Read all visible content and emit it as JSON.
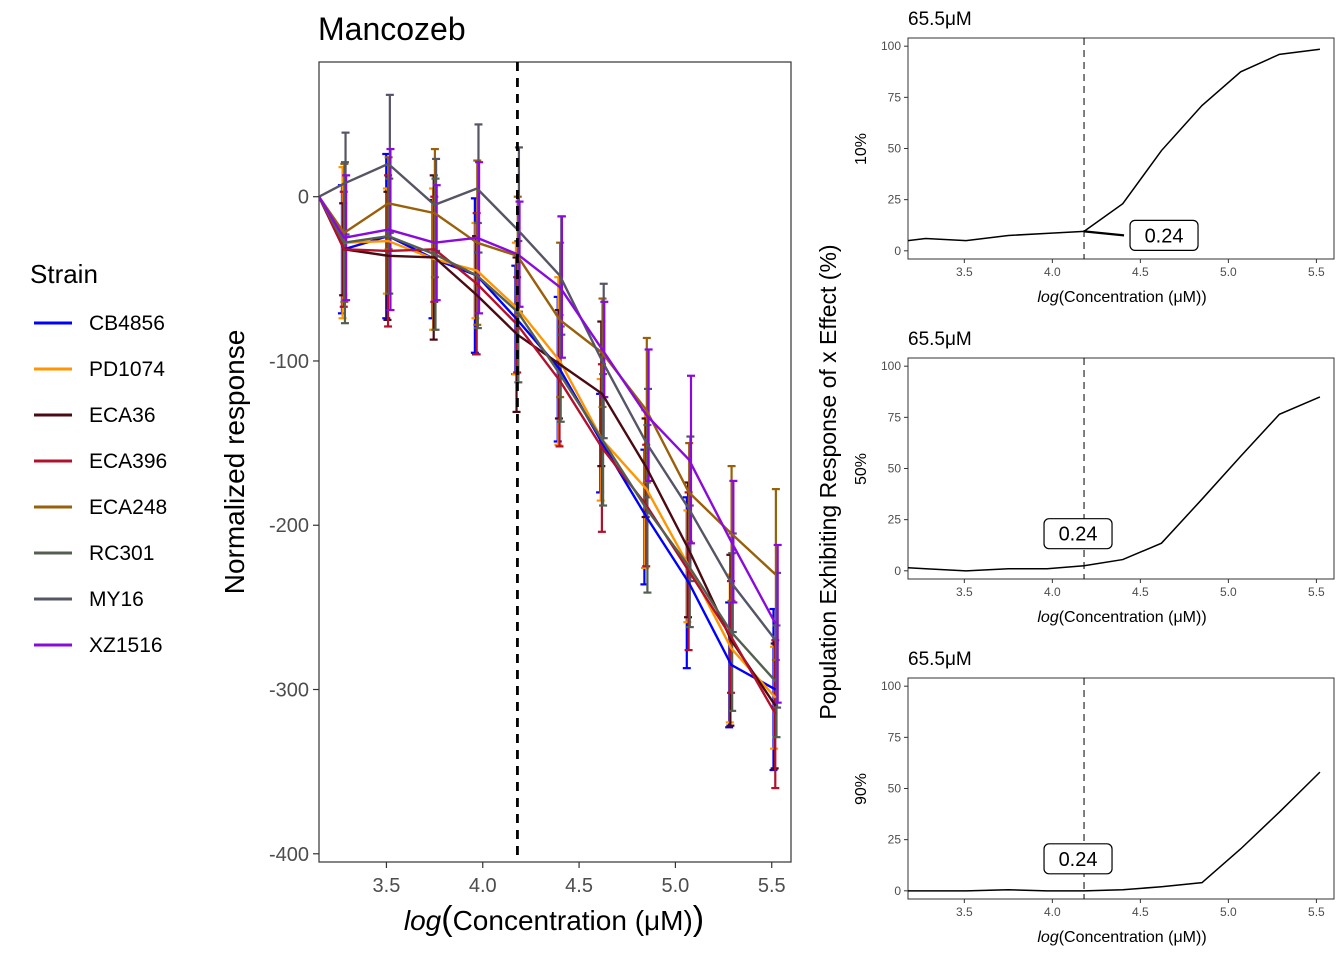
{
  "chart_data": [
    {
      "type": "line",
      "title": "Mancozeb",
      "xlabel_func": "log",
      "xlabel": "Concentration (μM)",
      "ylabel": "Normalized response",
      "xlim": [
        3.15,
        5.6
      ],
      "ylim": [
        -405,
        82
      ],
      "xticks": [
        "3.5",
        "4.0",
        "4.5",
        "5.0",
        "5.5"
      ],
      "yticks": [
        "0",
        "-100",
        "-200",
        "-300",
        "-400"
      ],
      "vline_x": 4.18,
      "error_bars": true,
      "x": [
        3.15,
        3.28,
        3.51,
        3.75,
        3.97,
        4.18,
        4.4,
        4.62,
        4.85,
        5.07,
        5.29,
        5.52
      ],
      "series": [
        {
          "name": "CB4856",
          "color": "#0000FF",
          "values": [
            0,
            -32,
            -24,
            -38,
            -48,
            -75,
            -105,
            -150,
            -195,
            -235,
            -285,
            -300
          ]
        },
        {
          "name": "PD1074",
          "color": "#FF9500",
          "values": [
            0,
            -28,
            -27,
            -38,
            -45,
            -68,
            -100,
            -148,
            -178,
            -225,
            -275,
            -305
          ]
        },
        {
          "name": "ECA36",
          "color": "#4A0A12",
          "values": [
            0,
            -32,
            -36,
            -37,
            -60,
            -84,
            -102,
            -120,
            -165,
            -215,
            -270,
            -310
          ]
        },
        {
          "name": "ECA396",
          "color": "#B3102B",
          "values": [
            0,
            -32,
            -33,
            -32,
            -53,
            -78,
            -112,
            -153,
            -188,
            -228,
            -268,
            -315
          ]
        },
        {
          "name": "ECA248",
          "color": "#99600A",
          "values": [
            0,
            -22,
            -4,
            -10,
            -28,
            -36,
            -75,
            -95,
            -130,
            -180,
            -205,
            -230
          ]
        },
        {
          "name": "RC301",
          "color": "#53604F",
          "values": [
            0,
            -28,
            -24,
            -35,
            -48,
            -70,
            -108,
            -148,
            -190,
            -225,
            -265,
            -295
          ]
        },
        {
          "name": "MY16",
          "color": "#555566",
          "values": [
            0,
            8,
            20,
            -5,
            5,
            -20,
            -48,
            -100,
            -150,
            -190,
            -235,
            -270
          ]
        },
        {
          "name": "XZ1516",
          "color": "#8A0ADE",
          "values": [
            0,
            -25,
            -20,
            -28,
            -25,
            -35,
            -55,
            -93,
            -133,
            -160,
            -210,
            -260
          ]
        }
      ],
      "vline_style": "dashed"
    },
    {
      "type": "line",
      "title": "65.5μM",
      "ylabel": "10%",
      "xlabel_func": "log",
      "xlabel": "Concentration (μM)",
      "xlim": [
        3.18,
        5.6
      ],
      "ylim": [
        -4,
        104
      ],
      "xticks": [
        "3.5",
        "4.0",
        "4.5",
        "5.0",
        "5.5"
      ],
      "yticks": [
        "0",
        "25",
        "50",
        "75",
        "100"
      ],
      "vline_x": 4.18,
      "x": [
        3.18,
        3.28,
        3.51,
        3.75,
        3.97,
        4.18,
        4.4,
        4.62,
        4.85,
        5.07,
        5.29,
        5.52
      ],
      "values": [
        5,
        6,
        5,
        7.5,
        8.5,
        9.5,
        23,
        49,
        71,
        87.5,
        96,
        98.5
      ],
      "annotation": "0.24",
      "annotation_leader": true
    },
    {
      "type": "line",
      "title": "65.5μM",
      "ylabel": "50%",
      "xlabel_func": "log",
      "xlabel": "Concentration (μM)",
      "xlim": [
        3.18,
        5.6
      ],
      "ylim": [
        -4,
        104
      ],
      "xticks": [
        "3.5",
        "4.0",
        "4.5",
        "5.0",
        "5.5"
      ],
      "yticks": [
        "0",
        "25",
        "50",
        "75",
        "100"
      ],
      "vline_x": 4.18,
      "x": [
        3.18,
        3.28,
        3.51,
        3.75,
        3.97,
        4.18,
        4.4,
        4.62,
        4.85,
        5.07,
        5.29,
        5.52
      ],
      "values": [
        1.5,
        1,
        0,
        1,
        1,
        2.5,
        5.5,
        13.5,
        35,
        56,
        76.5,
        85
      ],
      "annotation": "0.24"
    },
    {
      "type": "line",
      "title": "65.5μM",
      "ylabel": "90%",
      "xlabel_func": "log",
      "xlabel": "Concentration (μM)",
      "xlim": [
        3.18,
        5.6
      ],
      "ylim": [
        -4,
        104
      ],
      "xticks": [
        "3.5",
        "4.0",
        "4.5",
        "5.0",
        "5.5"
      ],
      "yticks": [
        "0",
        "25",
        "50",
        "75",
        "100"
      ],
      "vline_x": 4.18,
      "x": [
        3.18,
        3.28,
        3.51,
        3.75,
        3.97,
        4.18,
        4.4,
        4.62,
        4.85,
        5.07,
        5.29,
        5.52
      ],
      "values": [
        0,
        0,
        0,
        0.5,
        0,
        0,
        0.5,
        2,
        4,
        20.5,
        38.5,
        58
      ],
      "annotation": "0.24"
    }
  ],
  "legend": {
    "title": "Strain",
    "items": [
      "CB4856",
      "PD1074",
      "ECA36",
      "ECA396",
      "ECA248",
      "RC301",
      "MY16",
      "XZ1516"
    ]
  },
  "shared_ylabel": "Population Exhibiting Response of x Effect (%)"
}
